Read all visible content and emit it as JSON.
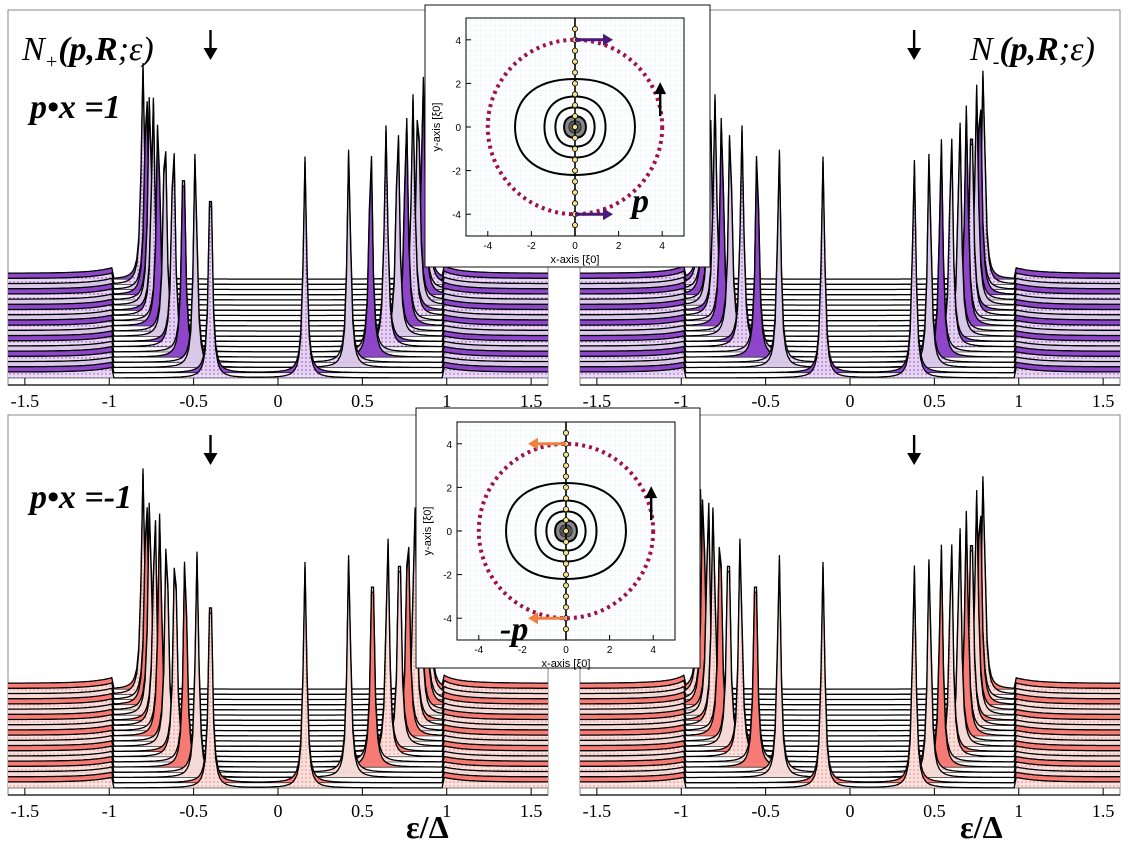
{
  "figure": {
    "label_N_plus": "N+(p,R;ε)",
    "label_N_minus": "N-(p,R;ε)",
    "label_px_pos": "p•x =1",
    "label_px_neg": "p•x =-1",
    "label_p": "p",
    "label_neg_p": "-p",
    "energy_axis_label": "ε/Δ"
  },
  "colors": {
    "purple_fill": "#8a3ec8",
    "purple_light": "#d9c7e8",
    "purple_arrow": "#4a1a7a",
    "red_fill": "#f7766f",
    "red_light": "#f6d9d6",
    "orange_arrow": "#f08040",
    "path_color": "#a0104a",
    "line": "#000000"
  },
  "chart_data": [
    {
      "type": "line",
      "title": "N+(p,R;ε), p•x =1",
      "xlabel": "",
      "xlim": [
        -1.6,
        1.6
      ],
      "xticks": [
        "-1.5",
        "-1",
        "-0.5",
        "0",
        "0.5",
        "1",
        "1.5"
      ],
      "xtick_values": [
        -1.5,
        -1,
        -0.5,
        0,
        0.5,
        1,
        1.5
      ],
      "n_traces": 20,
      "fill": "purple",
      "peak_arrow_at": -0.4,
      "peaks_low": [
        -0.4,
        -0.49,
        -0.56,
        -0.62,
        -0.67,
        -0.71,
        -0.74,
        -0.76,
        -0.78,
        -0.8
      ],
      "peaks_high": [
        0.16,
        0.42,
        0.55,
        0.64,
        0.71,
        0.76,
        0.8,
        0.83,
        0.86,
        0.88
      ],
      "grid": false
    },
    {
      "type": "line",
      "title": "N-(p,R;ε), p•x =1",
      "xlabel": "",
      "xlim": [
        -1.6,
        1.6
      ],
      "xticks": [
        "-1.5",
        "-1",
        "-0.5",
        "0",
        "0.5",
        "1",
        "1.5"
      ],
      "xtick_values": [
        -1.5,
        -1,
        -0.5,
        0,
        0.5,
        1,
        1.5
      ],
      "n_traces": 20,
      "fill": "purple",
      "peak_arrow_at": 0.38,
      "peaks_low": [
        -0.16,
        -0.42,
        -0.55,
        -0.64,
        -0.71,
        -0.76,
        -0.8,
        -0.83,
        -0.86,
        -0.88
      ],
      "peaks_high": [
        0.38,
        0.47,
        0.54,
        0.6,
        0.65,
        0.69,
        0.72,
        0.75,
        0.77,
        0.79
      ],
      "grid": false
    },
    {
      "type": "line",
      "title": "N+(p,R;ε), p•x =-1",
      "xlabel": "ε/Δ",
      "xlim": [
        -1.6,
        1.6
      ],
      "xticks": [
        "-1.5",
        "-1",
        "-0.5",
        "0",
        "0.5",
        "1",
        "1.5"
      ],
      "xtick_values": [
        -1.5,
        -1,
        -0.5,
        0,
        0.5,
        1,
        1.5
      ],
      "n_traces": 20,
      "fill": "red",
      "peak_arrow_at": -0.4,
      "peaks_low": [
        -0.4,
        -0.48,
        -0.55,
        -0.61,
        -0.66,
        -0.7,
        -0.73,
        -0.76,
        -0.78,
        -0.8
      ],
      "peaks_high": [
        0.16,
        0.42,
        0.56,
        0.65,
        0.72,
        0.77,
        0.81,
        0.84,
        0.87,
        0.89
      ],
      "grid": false
    },
    {
      "type": "line",
      "title": "N-(p,R;ε), p•x =-1",
      "xlabel": "ε/Δ",
      "xlim": [
        -1.6,
        1.6
      ],
      "xticks": [
        "-1.5",
        "-1",
        "-0.5",
        "0",
        "0.5",
        "1",
        "1.5"
      ],
      "xtick_values": [
        -1.5,
        -1,
        -0.5,
        0,
        0.5,
        1,
        1.5
      ],
      "n_traces": 20,
      "fill": "red",
      "peak_arrow_at": 0.38,
      "peaks_low": [
        -0.16,
        -0.42,
        -0.56,
        -0.65,
        -0.72,
        -0.77,
        -0.81,
        -0.84,
        -0.87,
        -0.89
      ],
      "peaks_high": [
        0.38,
        0.47,
        0.54,
        0.6,
        0.65,
        0.69,
        0.72,
        0.75,
        0.77,
        0.79
      ],
      "grid": false
    },
    {
      "type": "contour",
      "title": "inset top",
      "xlabel": "x-axis [ξ0]",
      "ylabel": "y-axis [ξ0]",
      "xlim": [
        -5,
        5
      ],
      "ylim": [
        -5,
        5
      ],
      "xticks": [
        "-4",
        "-2",
        "0",
        "2",
        "4"
      ],
      "yticks": [
        "-4",
        "-2",
        "0",
        "2",
        "4"
      ],
      "tick_values": [
        -4,
        -2,
        0,
        2,
        4
      ],
      "contour_radii": [
        2.2,
        1.4,
        0.9,
        0.5,
        0.25
      ],
      "path_radius": 4,
      "arrow_direction": "right"
    },
    {
      "type": "contour",
      "title": "inset bottom",
      "xlabel": "x-axis [ξ0]",
      "ylabel": "y-axis [ξ0]",
      "xlim": [
        -5,
        5
      ],
      "ylim": [
        -5,
        5
      ],
      "xticks": [
        "-4",
        "-2",
        "0",
        "2",
        "4"
      ],
      "yticks": [
        "-4",
        "-2",
        "0",
        "2",
        "4"
      ],
      "tick_values": [
        -4,
        -2,
        0,
        2,
        4
      ],
      "contour_radii": [
        2.2,
        1.4,
        0.9,
        0.5,
        0.25
      ],
      "path_radius": 4,
      "arrow_direction": "left"
    }
  ]
}
